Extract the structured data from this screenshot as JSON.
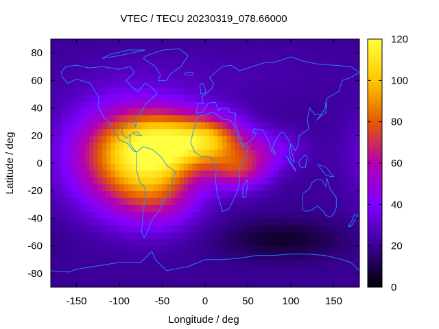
{
  "chart_data": {
    "type": "heatmap",
    "title": "VTEC / TECU 20230319_078.66000",
    "xlabel": "Longitude / deg",
    "ylabel": "Latitude / deg",
    "xlim": [
      -180,
      180
    ],
    "ylim": [
      -90,
      90
    ],
    "x_ticks": [
      -150,
      -100,
      -50,
      0,
      50,
      100,
      150
    ],
    "x_tick_labels": [
      "-150",
      "-100",
      "-50",
      "0",
      "50",
      "100",
      "150"
    ],
    "y_ticks": [
      -80,
      -60,
      -40,
      -20,
      0,
      20,
      40,
      60,
      80
    ],
    "y_tick_labels": [
      "-80",
      "-60",
      "-40",
      "-20",
      "0",
      "20",
      "40",
      "60",
      "80"
    ],
    "colorbar": {
      "range": [
        0,
        120
      ],
      "ticks": [
        0,
        20,
        40,
        60,
        80,
        100,
        120
      ],
      "tick_labels": [
        "0",
        "20",
        "40",
        "60",
        "80",
        "100",
        "120"
      ],
      "colormap": [
        "#000000",
        "#3a0096",
        "#7f00ff",
        "#b400b0",
        "#e35a00",
        "#ffc800",
        "#ffff40"
      ]
    },
    "grid_step_deg": 5,
    "field_model": {
      "background_tecu": 20,
      "blobs": [
        {
          "lon": -90,
          "lat": 5,
          "amp_tecu": 68,
          "sigma_lon": 48,
          "sigma_lat": 26
        },
        {
          "lon": -40,
          "lat": 15,
          "amp_tecu": 60,
          "sigma_lon": 40,
          "sigma_lat": 16
        },
        {
          "lon": -55,
          "lat": -22,
          "amp_tecu": 30,
          "sigma_lon": 35,
          "sigma_lat": 18
        },
        {
          "lon": 10,
          "lat": 18,
          "amp_tecu": 45,
          "sigma_lon": 28,
          "sigma_lat": 12
        },
        {
          "lon": 40,
          "lat": -5,
          "amp_tecu": 40,
          "sigma_lon": 25,
          "sigma_lat": 10
        },
        {
          "lon": 70,
          "lat": 10,
          "amp_tecu": 22,
          "sigma_lon": 30,
          "sigma_lat": 10
        },
        {
          "lon": 90,
          "lat": -55,
          "amp_tecu": -14,
          "sigma_lon": 50,
          "sigma_lat": 10
        },
        {
          "lon": -10,
          "lat": 65,
          "amp_tecu": 5,
          "sigma_lon": 120,
          "sigma_lat": 15
        }
      ]
    },
    "coastlines": [
      {
        "name": "north-america",
        "points": [
          [
            -168,
            66
          ],
          [
            -162,
            70
          ],
          [
            -150,
            71
          ],
          [
            -135,
            69
          ],
          [
            -120,
            70
          ],
          [
            -100,
            68
          ],
          [
            -88,
            70
          ],
          [
            -82,
            66
          ],
          [
            -92,
            60
          ],
          [
            -85,
            55
          ],
          [
            -78,
            52
          ],
          [
            -70,
            58
          ],
          [
            -62,
            55
          ],
          [
            -56,
            50
          ],
          [
            -66,
            45
          ],
          [
            -70,
            42
          ],
          [
            -76,
            36
          ],
          [
            -80,
            32
          ],
          [
            -81,
            26
          ],
          [
            -83,
            29
          ],
          [
            -90,
            30
          ],
          [
            -97,
            27
          ],
          [
            -97,
            22
          ],
          [
            -92,
            18
          ],
          [
            -87,
            21
          ],
          [
            -88,
            15
          ],
          [
            -84,
            11
          ],
          [
            -80,
            8
          ],
          [
            -84,
            9
          ],
          [
            -90,
            14
          ],
          [
            -100,
            17
          ],
          [
            -106,
            23
          ],
          [
            -112,
            30
          ],
          [
            -118,
            33
          ],
          [
            -124,
            40
          ],
          [
            -124,
            48
          ],
          [
            -134,
            58
          ],
          [
            -150,
            61
          ],
          [
            -160,
            58
          ],
          [
            -166,
            62
          ],
          [
            -168,
            66
          ]
        ]
      },
      {
        "name": "south-america",
        "points": [
          [
            -80,
            8
          ],
          [
            -72,
            12
          ],
          [
            -62,
            10
          ],
          [
            -52,
            5
          ],
          [
            -44,
            -2
          ],
          [
            -35,
            -6
          ],
          [
            -38,
            -13
          ],
          [
            -40,
            -22
          ],
          [
            -48,
            -26
          ],
          [
            -53,
            -34
          ],
          [
            -58,
            -38
          ],
          [
            -63,
            -42
          ],
          [
            -66,
            -48
          ],
          [
            -69,
            -52
          ],
          [
            -71,
            -54
          ],
          [
            -74,
            -50
          ],
          [
            -73,
            -40
          ],
          [
            -71,
            -30
          ],
          [
            -70,
            -18
          ],
          [
            -76,
            -14
          ],
          [
            -80,
            -5
          ],
          [
            -80,
            8
          ]
        ]
      },
      {
        "name": "greenland",
        "points": [
          [
            -55,
            60
          ],
          [
            -45,
            60
          ],
          [
            -40,
            65
          ],
          [
            -28,
            70
          ],
          [
            -20,
            78
          ],
          [
            -30,
            83
          ],
          [
            -50,
            82
          ],
          [
            -68,
            78
          ],
          [
            -72,
            76
          ],
          [
            -58,
            70
          ],
          [
            -52,
            64
          ],
          [
            -55,
            60
          ]
        ]
      },
      {
        "name": "africa",
        "points": [
          [
            -17,
            15
          ],
          [
            -12,
            27
          ],
          [
            -8,
            34
          ],
          [
            -2,
            35
          ],
          [
            10,
            37
          ],
          [
            20,
            32
          ],
          [
            30,
            31
          ],
          [
            33,
            28
          ],
          [
            39,
            18
          ],
          [
            43,
            12
          ],
          [
            51,
            12
          ],
          [
            45,
            3
          ],
          [
            40,
            -5
          ],
          [
            40,
            -15
          ],
          [
            35,
            -24
          ],
          [
            28,
            -33
          ],
          [
            20,
            -35
          ],
          [
            18,
            -30
          ],
          [
            14,
            -22
          ],
          [
            12,
            -12
          ],
          [
            13,
            -5
          ],
          [
            9,
            3
          ],
          [
            5,
            5
          ],
          [
            -5,
            5
          ],
          [
            -12,
            8
          ],
          [
            -17,
            15
          ]
        ]
      },
      {
        "name": "eurasia",
        "points": [
          [
            -10,
            36
          ],
          [
            -9,
            43
          ],
          [
            -2,
            43
          ],
          [
            -4,
            48
          ],
          [
            2,
            51
          ],
          [
            8,
            54
          ],
          [
            10,
            58
          ],
          [
            5,
            62
          ],
          [
            12,
            66
          ],
          [
            20,
            70
          ],
          [
            30,
            71
          ],
          [
            40,
            67
          ],
          [
            55,
            70
          ],
          [
            70,
            73
          ],
          [
            80,
            73
          ],
          [
            100,
            77
          ],
          [
            115,
            74
          ],
          [
            130,
            72
          ],
          [
            150,
            71
          ],
          [
            170,
            70
          ],
          [
            180,
            66
          ],
          [
            170,
            62
          ],
          [
            160,
            60
          ],
          [
            156,
            52
          ],
          [
            142,
            47
          ],
          [
            140,
            40
          ],
          [
            135,
            35
          ],
          [
            128,
            35
          ],
          [
            122,
            40
          ],
          [
            119,
            32
          ],
          [
            121,
            25
          ],
          [
            110,
            20
          ],
          [
            108,
            12
          ],
          [
            105,
            9
          ],
          [
            100,
            14
          ],
          [
            98,
            8
          ],
          [
            100,
            3
          ],
          [
            104,
            1
          ],
          [
            98,
            16
          ],
          [
            92,
            22
          ],
          [
            88,
            22
          ],
          [
            80,
            14
          ],
          [
            78,
            8
          ],
          [
            73,
            18
          ],
          [
            67,
            24
          ],
          [
            57,
            25
          ],
          [
            55,
            22
          ],
          [
            60,
            22
          ],
          [
            55,
            17
          ],
          [
            45,
            13
          ],
          [
            43,
            15
          ],
          [
            35,
            29
          ],
          [
            35,
            33
          ],
          [
            36,
            36
          ],
          [
            28,
            37
          ],
          [
            27,
            40
          ],
          [
            23,
            40
          ],
          [
            18,
            40
          ],
          [
            16,
            38
          ],
          [
            12,
            44
          ],
          [
            8,
            44
          ],
          [
            3,
            43
          ],
          [
            -3,
            37
          ],
          [
            -10,
            36
          ]
        ]
      },
      {
        "name": "australia",
        "points": [
          [
            114,
            -22
          ],
          [
            114,
            -34
          ],
          [
            118,
            -35
          ],
          [
            124,
            -34
          ],
          [
            131,
            -31
          ],
          [
            138,
            -35
          ],
          [
            141,
            -38
          ],
          [
            146,
            -39
          ],
          [
            150,
            -37
          ],
          [
            153,
            -32
          ],
          [
            153,
            -25
          ],
          [
            146,
            -19
          ],
          [
            142,
            -11
          ],
          [
            141,
            -17
          ],
          [
            136,
            -12
          ],
          [
            130,
            -12
          ],
          [
            125,
            -14
          ],
          [
            121,
            -19
          ],
          [
            114,
            -22
          ]
        ]
      },
      {
        "name": "antarctica",
        "points": [
          [
            -180,
            -78
          ],
          [
            -160,
            -79
          ],
          [
            -150,
            -77
          ],
          [
            -120,
            -74
          ],
          [
            -100,
            -72
          ],
          [
            -75,
            -72
          ],
          [
            -62,
            -64
          ],
          [
            -58,
            -70
          ],
          [
            -45,
            -78
          ],
          [
            -20,
            -75
          ],
          [
            0,
            -70
          ],
          [
            20,
            -70
          ],
          [
            40,
            -69
          ],
          [
            60,
            -67
          ],
          [
            80,
            -67
          ],
          [
            100,
            -66
          ],
          [
            120,
            -66
          ],
          [
            140,
            -67
          ],
          [
            160,
            -70
          ],
          [
            170,
            -72
          ],
          [
            180,
            -78
          ]
        ]
      },
      {
        "name": "arctic-islands",
        "points": [
          [
            -120,
            76
          ],
          [
            -100,
            78
          ],
          [
            -85,
            80
          ],
          [
            -70,
            82
          ],
          [
            -90,
            82
          ],
          [
            -110,
            79
          ],
          [
            -120,
            76
          ]
        ]
      },
      {
        "name": "iceland",
        "points": [
          [
            -24,
            64
          ],
          [
            -14,
            64
          ],
          [
            -14,
            66
          ],
          [
            -22,
            66
          ],
          [
            -24,
            64
          ]
        ]
      },
      {
        "name": "great-britain",
        "points": [
          [
            -5,
            50
          ],
          [
            1,
            51
          ],
          [
            0,
            54
          ],
          [
            -3,
            58
          ],
          [
            -6,
            57
          ],
          [
            -5,
            50
          ]
        ]
      },
      {
        "name": "japan",
        "points": [
          [
            130,
            31
          ],
          [
            135,
            34
          ],
          [
            140,
            36
          ],
          [
            142,
            40
          ],
          [
            141,
            45
          ],
          [
            140,
            40
          ],
          [
            135,
            35
          ],
          [
            130,
            31
          ]
        ]
      },
      {
        "name": "madagascar",
        "points": [
          [
            44,
            -25
          ],
          [
            47,
            -25
          ],
          [
            50,
            -15
          ],
          [
            49,
            -12
          ],
          [
            44,
            -17
          ],
          [
            44,
            -25
          ]
        ]
      },
      {
        "name": "borneo",
        "points": [
          [
            109,
            1
          ],
          [
            116,
            6
          ],
          [
            119,
            5
          ],
          [
            117,
            -3
          ],
          [
            111,
            -3
          ],
          [
            109,
            1
          ]
        ]
      },
      {
        "name": "sumatra",
        "points": [
          [
            95,
            5
          ],
          [
            104,
            -3
          ],
          [
            106,
            -6
          ],
          [
            101,
            -2
          ],
          [
            95,
            5
          ]
        ]
      },
      {
        "name": "new-guinea",
        "points": [
          [
            131,
            -1
          ],
          [
            141,
            -3
          ],
          [
            150,
            -10
          ],
          [
            141,
            -9
          ],
          [
            135,
            -4
          ],
          [
            131,
            -1
          ]
        ]
      },
      {
        "name": "new-zealand",
        "points": [
          [
            167,
            -46
          ],
          [
            172,
            -41
          ],
          [
            174,
            -37
          ],
          [
            178,
            -38
          ],
          [
            174,
            -42
          ],
          [
            170,
            -46
          ],
          [
            167,
            -46
          ]
        ]
      },
      {
        "name": "sri-lanka",
        "points": [
          [
            80,
            6
          ],
          [
            82,
            7
          ],
          [
            80,
            10
          ],
          [
            80,
            6
          ]
        ]
      },
      {
        "name": "cuba",
        "points": [
          [
            -85,
            22
          ],
          [
            -80,
            23
          ],
          [
            -74,
            20
          ],
          [
            -78,
            20
          ],
          [
            -85,
            22
          ]
        ]
      }
    ]
  }
}
